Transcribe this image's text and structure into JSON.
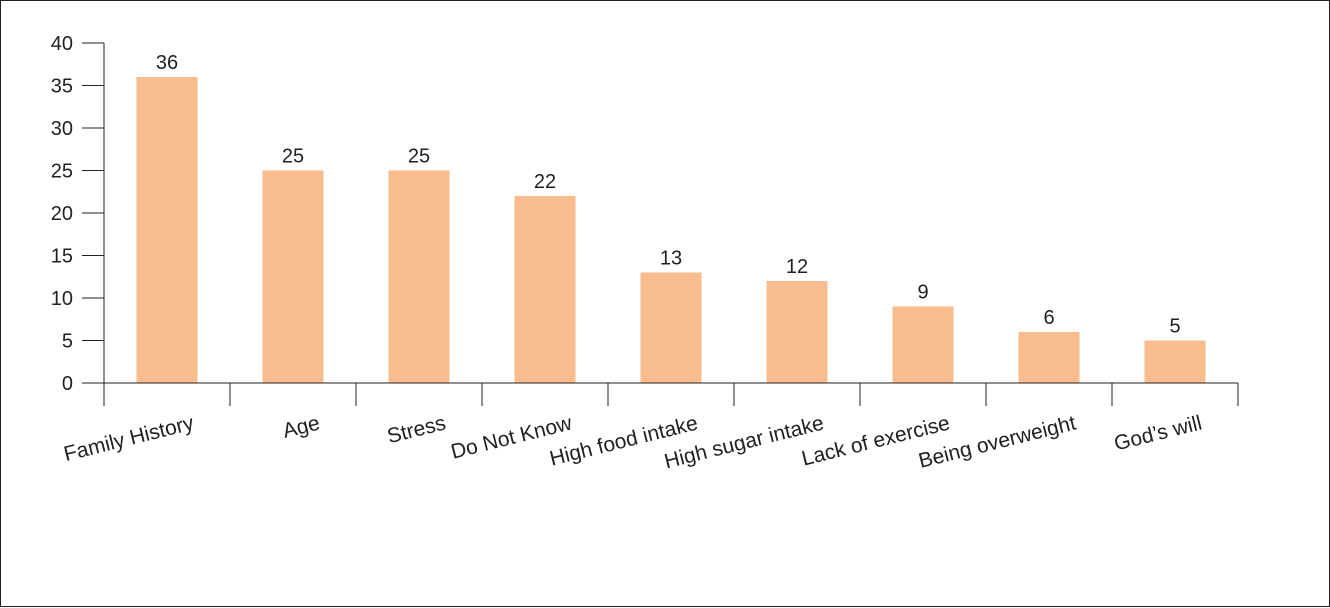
{
  "chart_data": {
    "type": "bar",
    "categories": [
      "Family History",
      "Age",
      "Stress",
      "Do Not Know",
      "High food intake",
      "High sugar intake",
      "Lack of exercise",
      "Being overweight",
      "God’s will"
    ],
    "values": [
      36,
      25,
      25,
      22,
      13,
      12,
      9,
      6,
      5
    ],
    "data_labels": [
      "36",
      "25",
      "25",
      "22",
      "13",
      "12",
      "9",
      "6",
      "5"
    ],
    "title": "",
    "xlabel": "",
    "ylabel": "",
    "ylim": [
      0,
      40
    ],
    "yticks": [
      0,
      5,
      10,
      15,
      20,
      25,
      30,
      35,
      40
    ],
    "grid": false,
    "legend": "none",
    "bar_color": "#f9bc8f",
    "axis_color": "#231f20"
  }
}
